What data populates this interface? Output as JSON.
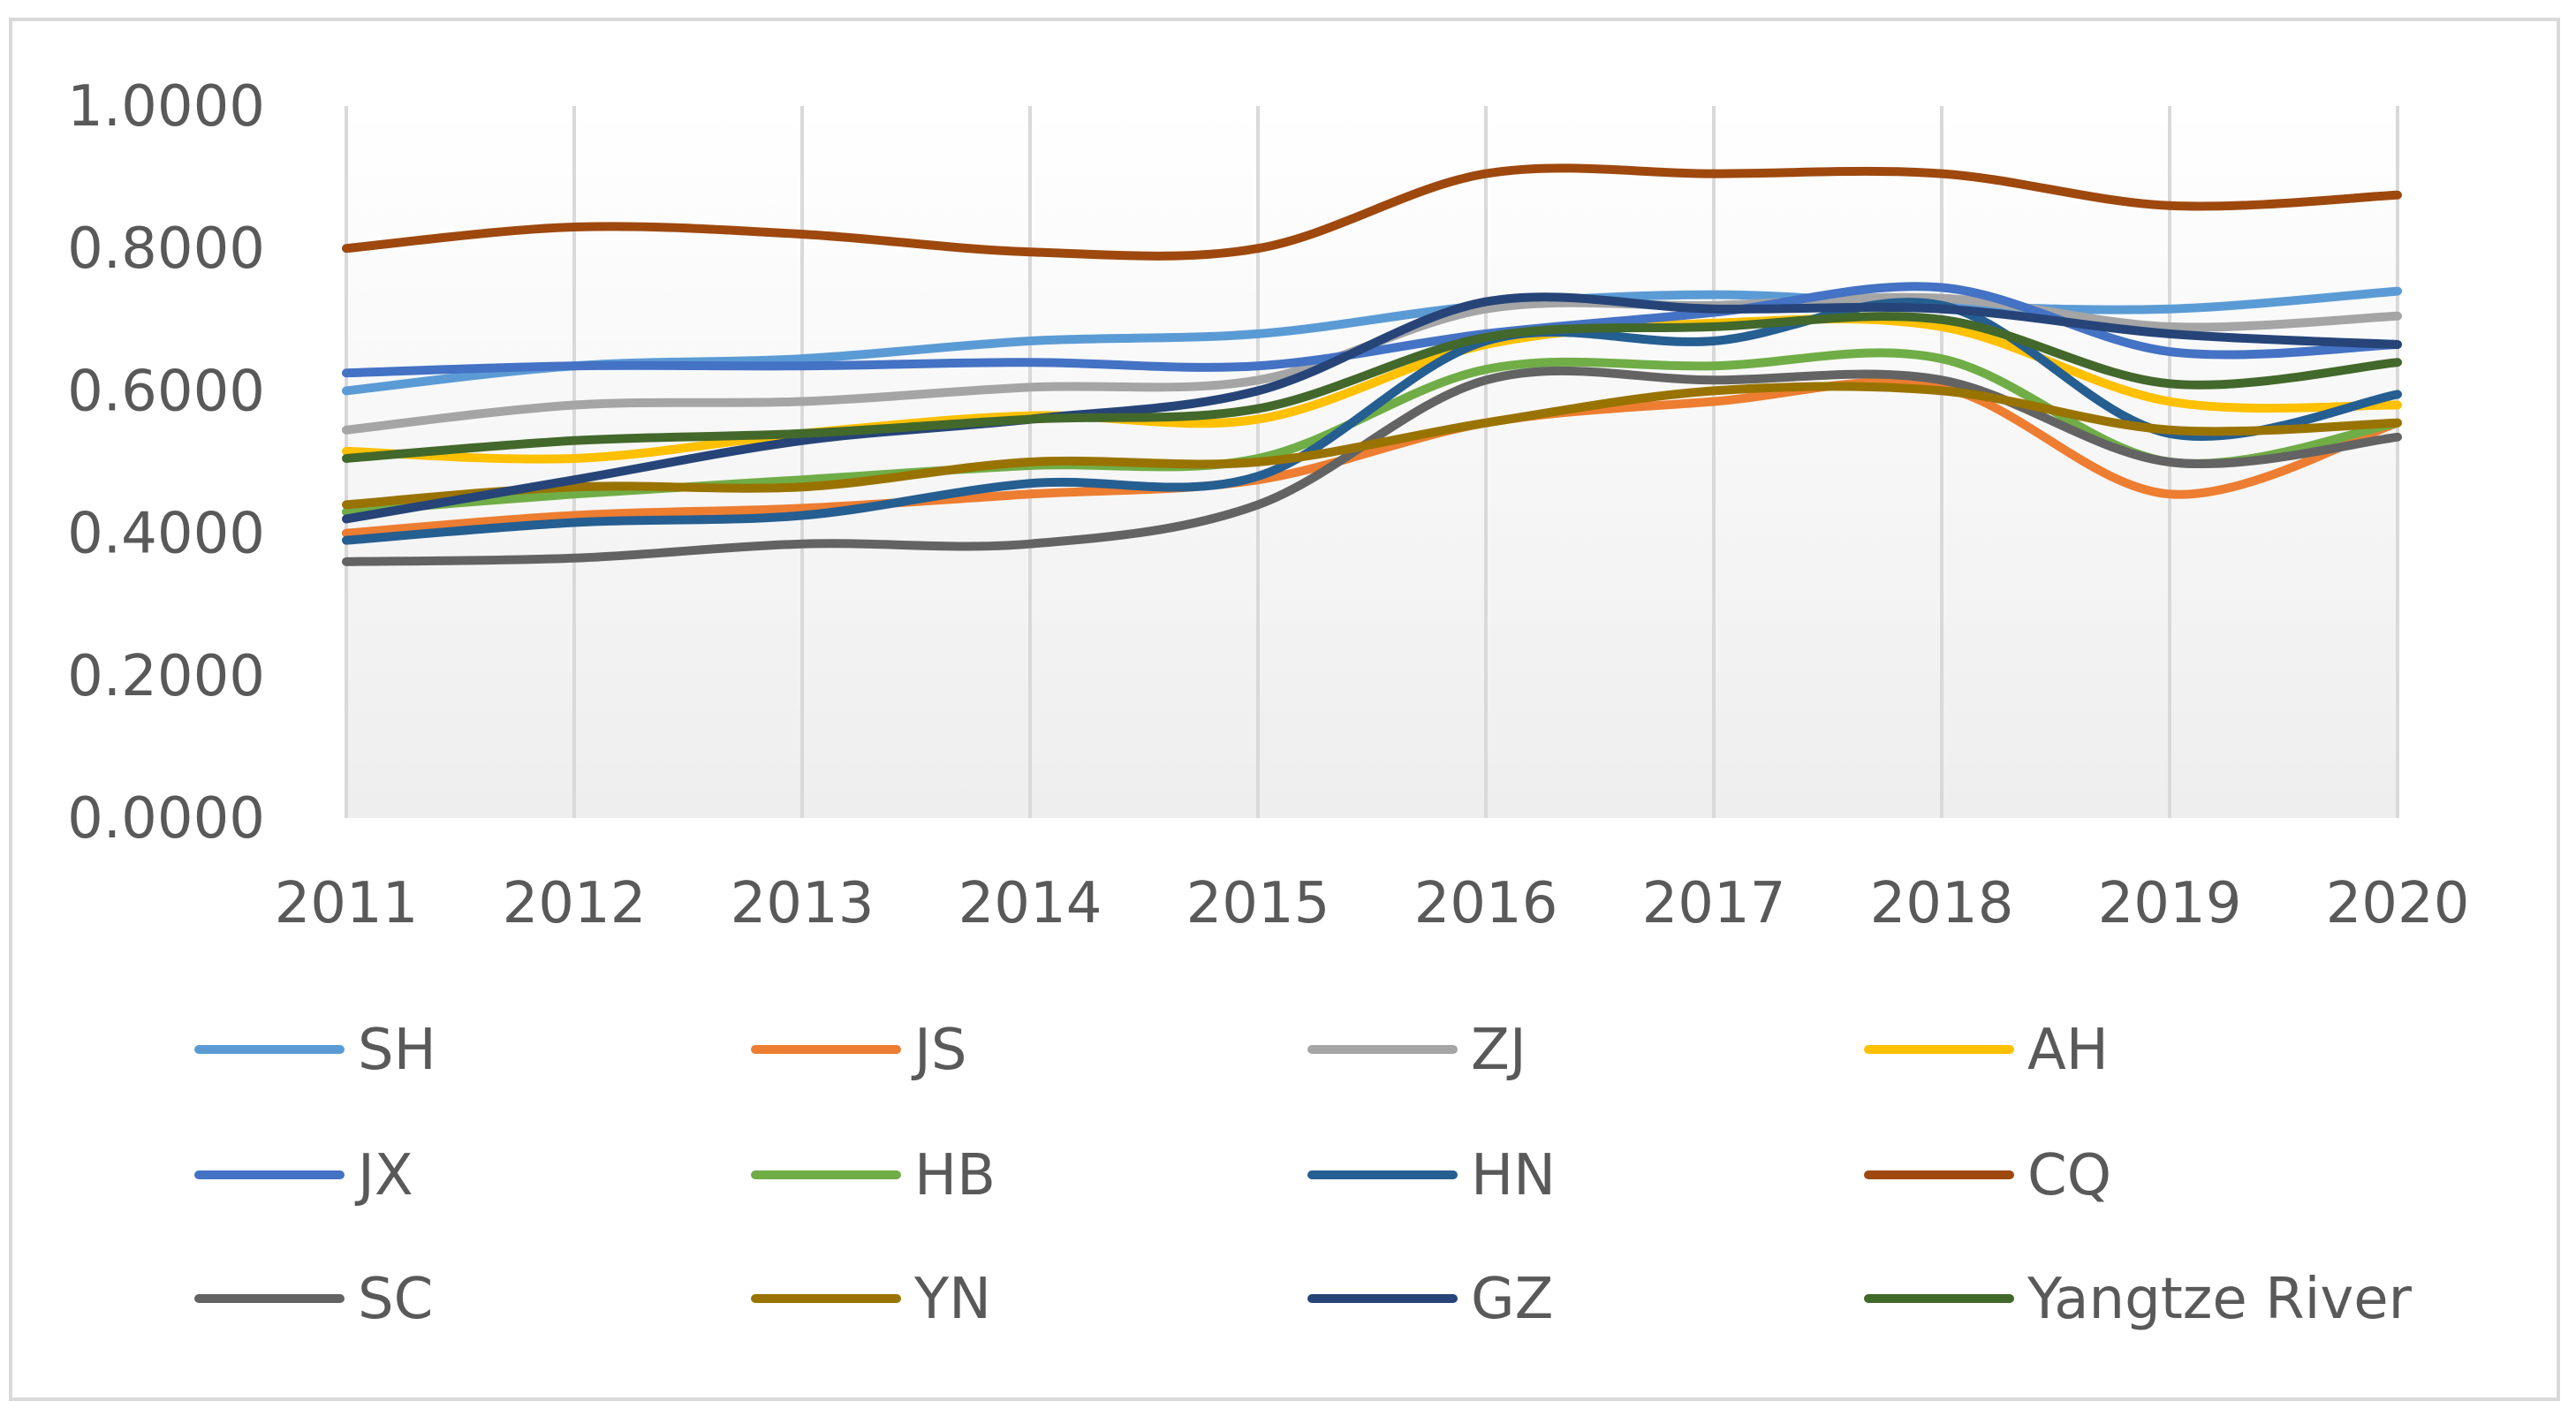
{
  "chart_data": {
    "type": "line",
    "title": "",
    "xlabel": "",
    "ylabel": "",
    "ylim": [
      0,
      1
    ],
    "y_tick_labels": [
      "0.0000",
      "0.2000",
      "0.4000",
      "0.6000",
      "0.8000",
      "1.0000"
    ],
    "categories": [
      "2011",
      "2012",
      "2013",
      "2014",
      "2015",
      "2016",
      "2017",
      "2018",
      "2019",
      "2020"
    ],
    "grid": "vertical",
    "legend_position": "bottom",
    "series": [
      {
        "name": "SH",
        "color": "#5b9bd5",
        "values": [
          0.6,
          0.635,
          0.645,
          0.67,
          0.68,
          0.72,
          0.735,
          0.72,
          0.715,
          0.74
        ]
      },
      {
        "name": "JS",
        "color": "#ed7d31",
        "values": [
          0.4,
          0.425,
          0.435,
          0.455,
          0.475,
          0.555,
          0.585,
          0.605,
          0.455,
          0.555
        ]
      },
      {
        "name": "ZJ",
        "color": "#a5a5a5",
        "values": [
          0.545,
          0.58,
          0.585,
          0.605,
          0.615,
          0.715,
          0.72,
          0.73,
          0.69,
          0.705
        ]
      },
      {
        "name": "AH",
        "color": "#ffc000",
        "values": [
          0.515,
          0.505,
          0.54,
          0.565,
          0.56,
          0.665,
          0.695,
          0.69,
          0.585,
          0.58
        ]
      },
      {
        "name": "JX",
        "color": "#4472c4",
        "values": [
          0.625,
          0.635,
          0.635,
          0.64,
          0.635,
          0.68,
          0.71,
          0.745,
          0.655,
          0.665
        ]
      },
      {
        "name": "HB",
        "color": "#70ad47",
        "values": [
          0.43,
          0.455,
          0.475,
          0.495,
          0.505,
          0.63,
          0.635,
          0.645,
          0.5,
          0.555
        ]
      },
      {
        "name": "HN",
        "color": "#255e91",
        "values": [
          0.39,
          0.415,
          0.425,
          0.47,
          0.48,
          0.67,
          0.67,
          0.72,
          0.54,
          0.595
        ]
      },
      {
        "name": "CQ",
        "color": "#9e480e",
        "values": [
          0.8,
          0.83,
          0.82,
          0.795,
          0.8,
          0.905,
          0.905,
          0.905,
          0.86,
          0.875
        ]
      },
      {
        "name": "SC",
        "color": "#636363",
        "values": [
          0.36,
          0.365,
          0.385,
          0.385,
          0.44,
          0.615,
          0.615,
          0.615,
          0.5,
          0.535
        ]
      },
      {
        "name": "YN",
        "color": "#997300",
        "values": [
          0.44,
          0.465,
          0.465,
          0.5,
          0.5,
          0.555,
          0.6,
          0.6,
          0.545,
          0.555
        ]
      },
      {
        "name": "GZ",
        "color": "#264478",
        "values": [
          0.42,
          0.475,
          0.53,
          0.56,
          0.6,
          0.725,
          0.715,
          0.715,
          0.68,
          0.665
        ]
      },
      {
        "name": "Yangtze River",
        "color": "#43682b",
        "values": [
          0.505,
          0.53,
          0.54,
          0.56,
          0.575,
          0.675,
          0.69,
          0.7,
          0.61,
          0.64
        ]
      }
    ]
  }
}
